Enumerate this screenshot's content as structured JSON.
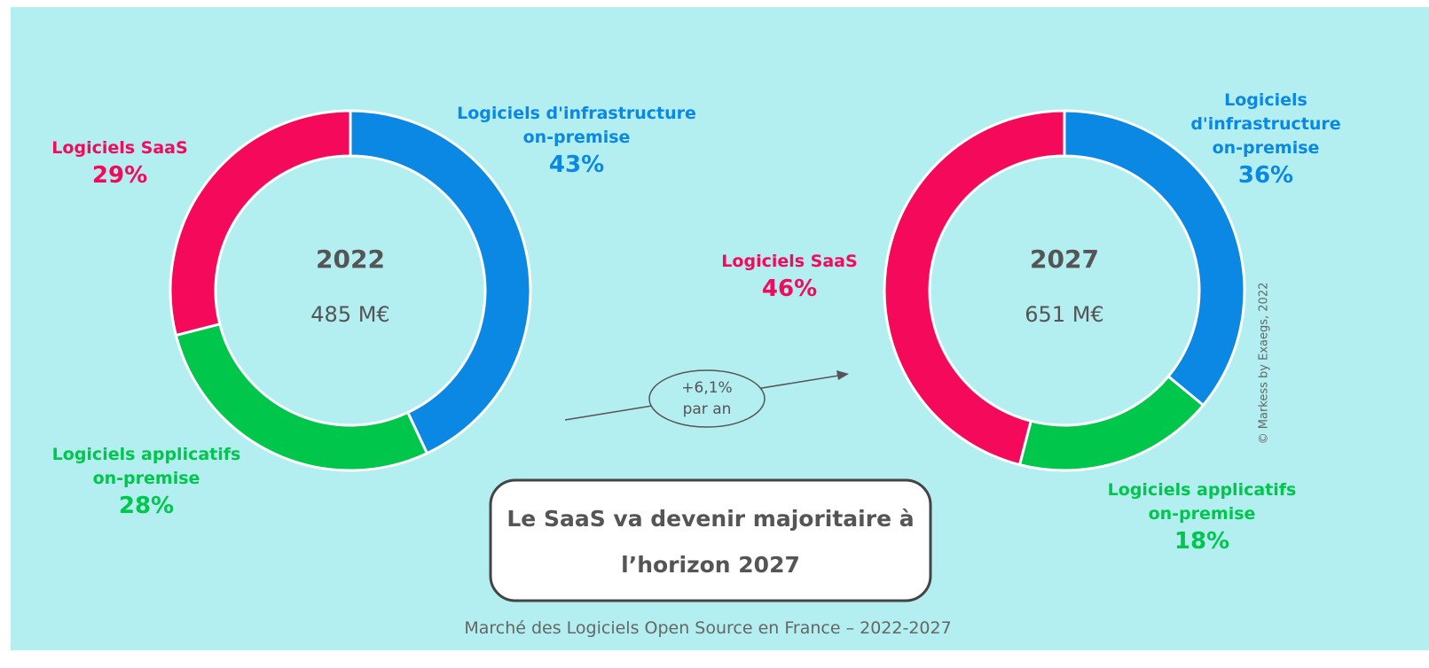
{
  "chart_data": [
    {
      "type": "donut",
      "title": "2022",
      "subtitle": "485 M€",
      "categories": [
        "Logiciels d'infrastructure\non-premise",
        "Logiciels applicatifs\non-premise",
        "Logiciels SaaS"
      ],
      "values": [
        43,
        28,
        29
      ],
      "value_labels": [
        "43%",
        "28%",
        "29%"
      ],
      "colors": [
        "#0a88e4",
        "#00c64c",
        "#f5095a"
      ]
    },
    {
      "type": "donut",
      "title": "2027",
      "subtitle": "651 M€",
      "categories": [
        "Logiciels d'infrastructure\non-premise",
        "Logiciels applicatifs\non-premise",
        "Logiciels SaaS"
      ],
      "values": [
        36,
        18,
        46
      ],
      "value_labels": [
        "36%",
        "18%",
        "46%"
      ],
      "colors": [
        "#0a88e4",
        "#00c64c",
        "#f5095a"
      ]
    }
  ],
  "growth": "+6,1%\npar an",
  "callout": "Le SaaS va devenir majoritaire à\nl’horizon 2027",
  "caption": "Marché des Logiciels Open Source en France – 2022-2027",
  "credit": "© Markess by Exaegs, 2022"
}
